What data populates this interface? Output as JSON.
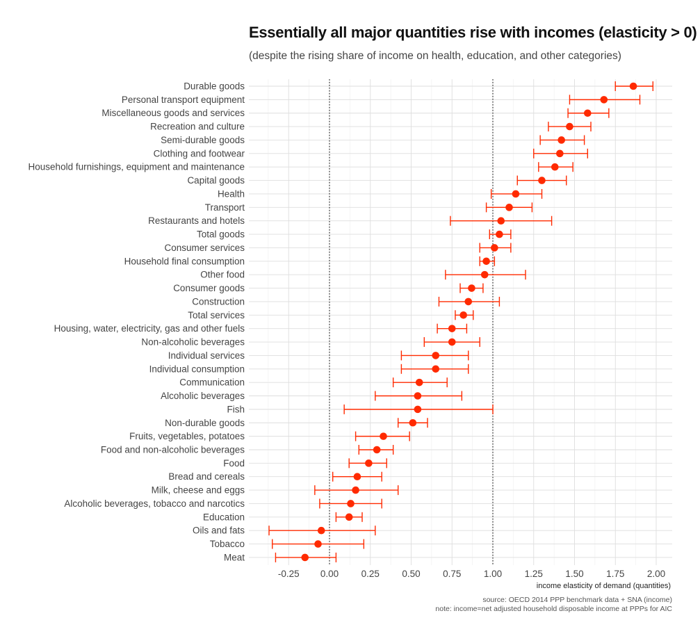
{
  "chart_data": {
    "type": "scatter",
    "subtype": "point-with-errorbars",
    "title": "Essentially all major quantities rise with incomes (elasticity > 0)",
    "subtitle": "(despite the rising share of income on health, education, and other categories)",
    "xlabel": "income elasticity of demand (quantities)",
    "ylabel": "",
    "xlim": [
      -0.5,
      2.1
    ],
    "xticks": [
      -0.25,
      0,
      0.25,
      0.5,
      0.75,
      1,
      1.25,
      1.5,
      1.75,
      2
    ],
    "xtick_labels": [
      "-0.25",
      "0.00",
      "0.25",
      "0.50",
      "0.75",
      "1.00",
      "1.25",
      "1.50",
      "1.75",
      "2.00"
    ],
    "reference_lines": [
      0,
      1
    ],
    "grid": true,
    "color": "#ff2a00",
    "categories": [
      "Durable goods",
      "Personal transport equipment",
      "Miscellaneous goods and services",
      "Recreation and culture",
      "Semi-durable goods",
      "Clothing and footwear",
      "Household furnishings, equipment and maintenance",
      "Capital goods",
      "Health",
      "Transport",
      "Restaurants and hotels",
      "Total goods",
      "Consumer services",
      "Household final consumption",
      "Other food",
      "Consumer goods",
      "Construction",
      "Total services",
      "Housing, water, electricity, gas and other fuels",
      "Non-alcoholic beverages",
      "Individual services",
      "Individual consumption",
      "Communication",
      "Alcoholic beverages",
      "Fish",
      "Non-durable goods",
      "Fruits, vegetables, potatoes",
      "Food and non-alcoholic beverages",
      "Food",
      "Bread and cereals",
      "Milk, cheese and eggs",
      "Alcoholic beverages, tobacco and narcotics",
      "Education",
      "Oils and fats",
      "Tobacco",
      "Meat"
    ],
    "estimates": [
      1.86,
      1.68,
      1.58,
      1.47,
      1.42,
      1.41,
      1.38,
      1.3,
      1.14,
      1.1,
      1.05,
      1.04,
      1.01,
      0.96,
      0.95,
      0.87,
      0.85,
      0.82,
      0.75,
      0.75,
      0.65,
      0.65,
      0.55,
      0.54,
      0.54,
      0.51,
      0.33,
      0.29,
      0.24,
      0.17,
      0.16,
      0.13,
      0.12,
      -0.05,
      -0.07,
      -0.15
    ],
    "lower": [
      1.75,
      1.47,
      1.46,
      1.34,
      1.29,
      1.25,
      1.28,
      1.15,
      0.99,
      0.96,
      0.74,
      0.98,
      0.92,
      0.92,
      0.71,
      0.8,
      0.67,
      0.77,
      0.66,
      0.58,
      0.44,
      0.44,
      0.39,
      0.28,
      0.09,
      0.42,
      0.16,
      0.18,
      0.12,
      0.02,
      -0.09,
      -0.06,
      0.04,
      -0.37,
      -0.35,
      -0.33
    ],
    "upper": [
      1.98,
      1.9,
      1.71,
      1.6,
      1.56,
      1.58,
      1.49,
      1.45,
      1.3,
      1.24,
      1.36,
      1.11,
      1.11,
      1.01,
      1.2,
      0.94,
      1.04,
      0.88,
      0.84,
      0.92,
      0.85,
      0.85,
      0.72,
      0.81,
      1.0,
      0.6,
      0.49,
      0.39,
      0.35,
      0.32,
      0.42,
      0.32,
      0.2,
      0.28,
      0.21,
      0.04
    ]
  },
  "source": {
    "line1": "source: OECD 2014 PPP benchmark data + SNA (income)",
    "line2": "note: income=net adjusted household disposable income at PPPs for AIC"
  }
}
